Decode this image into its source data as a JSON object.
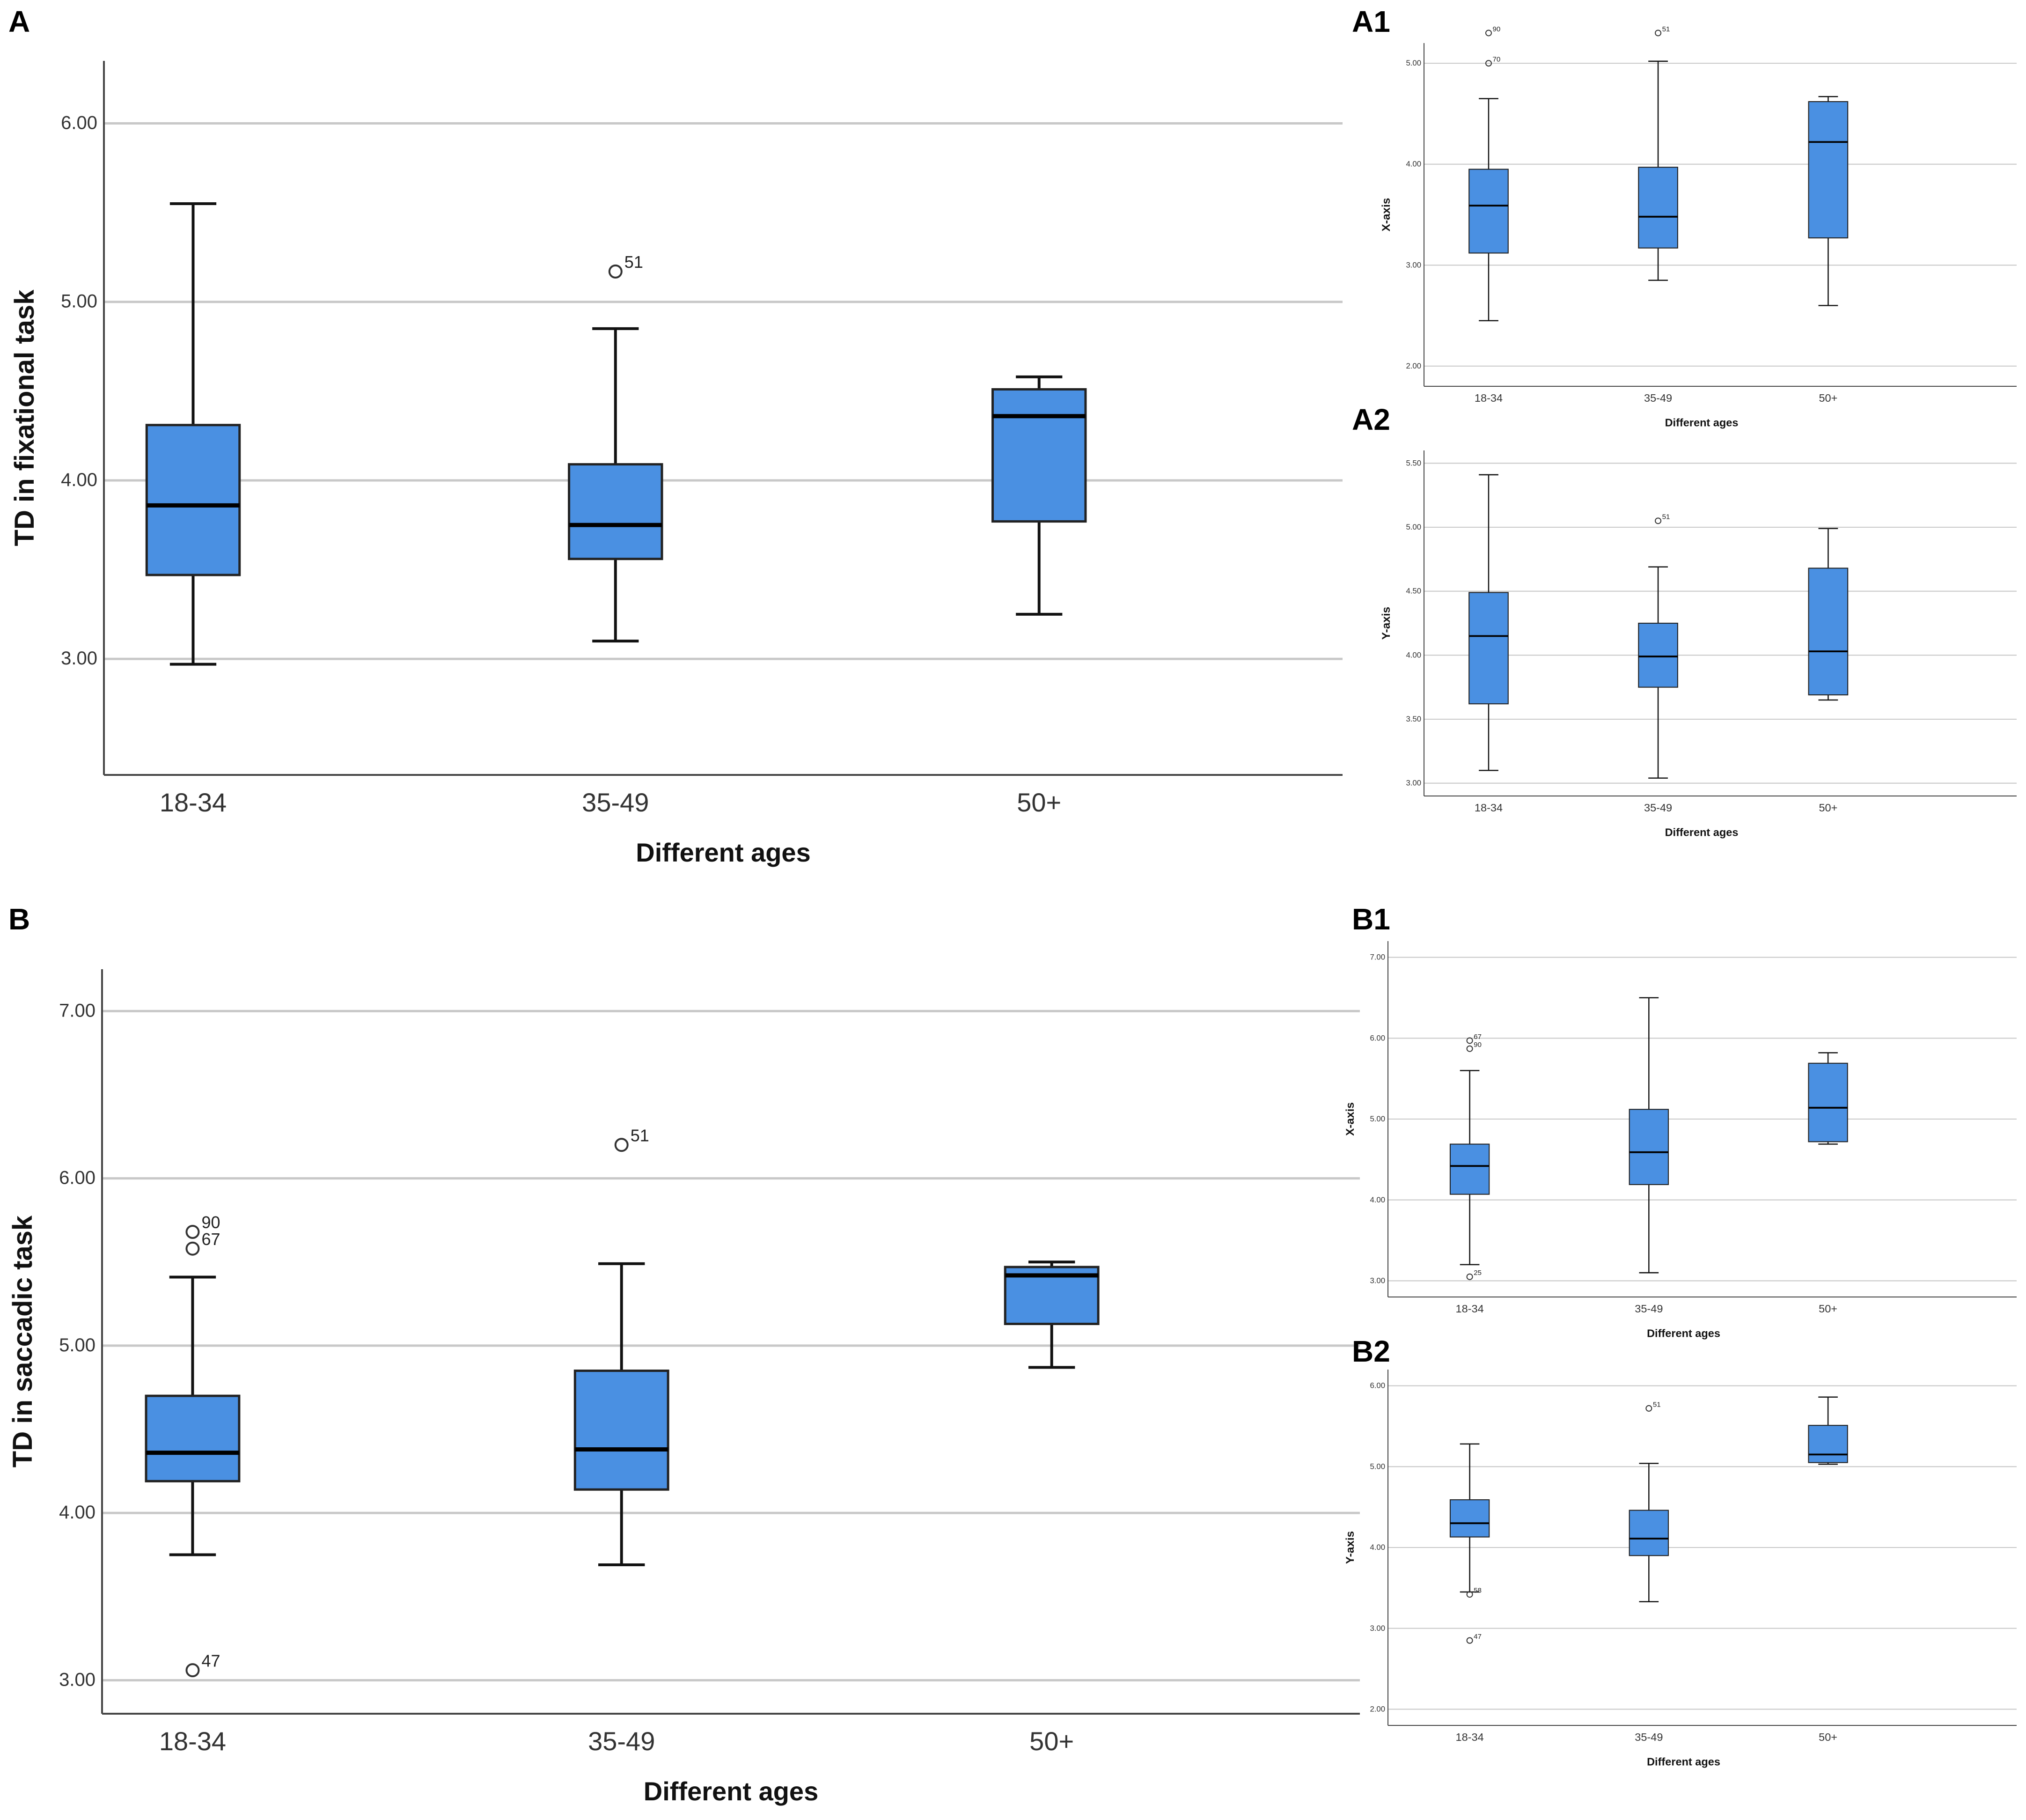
{
  "figure": {
    "box_color": "#4a90e2",
    "grid_color": "#c8c8c8",
    "panels_order": [
      "A",
      "A1",
      "A2",
      "B",
      "B1",
      "B2"
    ]
  },
  "chart_data": [
    {
      "id": "A",
      "type": "boxplot",
      "panel_label": "A",
      "ylabel": "TD in fixational task",
      "xlabel": "Different ages",
      "ylim": [
        2.35,
        6.35
      ],
      "yticks": [
        3.0,
        4.0,
        5.0,
        6.0
      ],
      "ytick_labels": [
        "3.00",
        "4.00",
        "5.00",
        "6.00"
      ],
      "categories": [
        "18-34",
        "35-49",
        "50+"
      ],
      "boxes": [
        {
          "whisker_low": 2.97,
          "q1": 3.47,
          "median": 3.86,
          "q3": 4.31,
          "whisker_high": 5.55,
          "outliers": []
        },
        {
          "whisker_low": 3.1,
          "q1": 3.56,
          "median": 3.75,
          "q3": 4.09,
          "whisker_high": 4.85,
          "outliers": [
            {
              "value": 5.17,
              "label": "51"
            }
          ]
        },
        {
          "whisker_low": 3.25,
          "q1": 3.77,
          "median": 4.36,
          "q3": 4.51,
          "whisker_high": 4.58,
          "outliers": []
        }
      ]
    },
    {
      "id": "A1",
      "type": "boxplot",
      "panel_label": "A1",
      "ylabel": "X-axis",
      "xlabel": "Different ages",
      "ylim": [
        1.8,
        5.2
      ],
      "yticks": [
        2.0,
        3.0,
        4.0,
        5.0
      ],
      "ytick_labels": [
        "2.00",
        "3.00",
        "4.00",
        "5.00"
      ],
      "categories": [
        "18-34",
        "35-49",
        "50+"
      ],
      "boxes": [
        {
          "whisker_low": 2.45,
          "q1": 3.12,
          "median": 3.59,
          "q3": 3.95,
          "whisker_high": 4.65,
          "outliers": [
            {
              "value": 5.3,
              "label": "90"
            },
            {
              "value": 5.0,
              "label": "70"
            }
          ]
        },
        {
          "whisker_low": 2.85,
          "q1": 3.17,
          "median": 3.48,
          "q3": 3.97,
          "whisker_high": 5.02,
          "outliers": [
            {
              "value": 5.3,
              "label": "51"
            }
          ]
        },
        {
          "whisker_low": 2.6,
          "q1": 3.27,
          "median": 4.22,
          "q3": 4.62,
          "whisker_high": 4.67,
          "outliers": []
        }
      ]
    },
    {
      "id": "A2",
      "type": "boxplot",
      "panel_label": "A2",
      "ylabel": "Y-axis",
      "xlabel": "Different ages",
      "ylim": [
        2.9,
        5.6
      ],
      "yticks": [
        3.0,
        3.5,
        4.0,
        4.5,
        5.0,
        5.5
      ],
      "ytick_labels": [
        "3.00",
        "3.50",
        "4.00",
        "4.50",
        "5.00",
        "5.50"
      ],
      "categories": [
        "18-34",
        "35-49",
        "50+"
      ],
      "boxes": [
        {
          "whisker_low": 3.1,
          "q1": 3.62,
          "median": 4.15,
          "q3": 4.49,
          "whisker_high": 5.41,
          "outliers": []
        },
        {
          "whisker_low": 3.04,
          "q1": 3.75,
          "median": 3.99,
          "q3": 4.25,
          "whisker_high": 4.69,
          "outliers": [
            {
              "value": 5.05,
              "label": "51"
            }
          ]
        },
        {
          "whisker_low": 3.65,
          "q1": 3.69,
          "median": 4.03,
          "q3": 4.68,
          "whisker_high": 4.99,
          "outliers": []
        }
      ]
    },
    {
      "id": "B",
      "type": "boxplot",
      "panel_label": "B",
      "ylabel": "TD in saccadic task",
      "xlabel": "Different ages",
      "ylim": [
        2.8,
        7.25
      ],
      "yticks": [
        3.0,
        4.0,
        5.0,
        6.0,
        7.0
      ],
      "ytick_labels": [
        "3.00",
        "4.00",
        "5.00",
        "6.00",
        "7.00"
      ],
      "categories": [
        "18-34",
        "35-49",
        "50+"
      ],
      "boxes": [
        {
          "whisker_low": 3.75,
          "q1": 4.19,
          "median": 4.36,
          "q3": 4.7,
          "whisker_high": 5.41,
          "outliers": [
            {
              "value": 5.68,
              "label": "90"
            },
            {
              "value": 5.58,
              "label": "67"
            },
            {
              "value": 3.06,
              "label": "47"
            }
          ]
        },
        {
          "whisker_low": 3.69,
          "q1": 4.14,
          "median": 4.38,
          "q3": 4.85,
          "whisker_high": 5.49,
          "outliers": [
            {
              "value": 6.2,
              "label": "51"
            }
          ]
        },
        {
          "whisker_low": 4.87,
          "q1": 5.13,
          "median": 5.42,
          "q3": 5.47,
          "whisker_high": 5.5,
          "outliers": []
        }
      ]
    },
    {
      "id": "B1",
      "type": "boxplot",
      "panel_label": "B1",
      "ylabel": "X-axis",
      "xlabel": "Different ages",
      "ylim": [
        2.8,
        7.2
      ],
      "yticks": [
        3.0,
        4.0,
        5.0,
        6.0,
        7.0
      ],
      "ytick_labels": [
        "3.00",
        "4.00",
        "5.00",
        "6.00",
        "7.00"
      ],
      "categories": [
        "18-34",
        "35-49",
        "50+"
      ],
      "boxes": [
        {
          "whisker_low": 3.2,
          "q1": 4.07,
          "median": 4.42,
          "q3": 4.69,
          "whisker_high": 5.6,
          "outliers": [
            {
              "value": 5.97,
              "label": "67"
            },
            {
              "value": 5.87,
              "label": "90"
            },
            {
              "value": 3.05,
              "label": "25"
            }
          ]
        },
        {
          "whisker_low": 3.1,
          "q1": 4.19,
          "median": 4.59,
          "q3": 5.12,
          "whisker_high": 6.5,
          "outliers": []
        },
        {
          "whisker_low": 4.69,
          "q1": 4.72,
          "median": 5.14,
          "q3": 5.69,
          "whisker_high": 5.82,
          "outliers": []
        }
      ]
    },
    {
      "id": "B2",
      "type": "boxplot",
      "panel_label": "B2",
      "ylabel": "Y-axis",
      "xlabel": "Different ages",
      "ylim": [
        1.8,
        6.2
      ],
      "yticks": [
        2.0,
        3.0,
        4.0,
        5.0,
        6.0
      ],
      "ytick_labels": [
        "2.00",
        "3.00",
        "4.00",
        "5.00",
        "6.00"
      ],
      "categories": [
        "18-34",
        "35-49",
        "50+"
      ],
      "boxes": [
        {
          "whisker_low": 3.45,
          "q1": 4.13,
          "median": 4.3,
          "q3": 4.59,
          "whisker_high": 5.28,
          "outliers": [
            {
              "value": 3.42,
              "label": "58"
            },
            {
              "value": 2.85,
              "label": "47"
            }
          ]
        },
        {
          "whisker_low": 3.33,
          "q1": 3.9,
          "median": 4.11,
          "q3": 4.46,
          "whisker_high": 5.04,
          "outliers": [
            {
              "value": 5.72,
              "label": "51"
            }
          ]
        },
        {
          "whisker_low": 5.03,
          "q1": 5.05,
          "median": 5.15,
          "q3": 5.51,
          "whisker_high": 5.86,
          "outliers": []
        }
      ]
    }
  ]
}
